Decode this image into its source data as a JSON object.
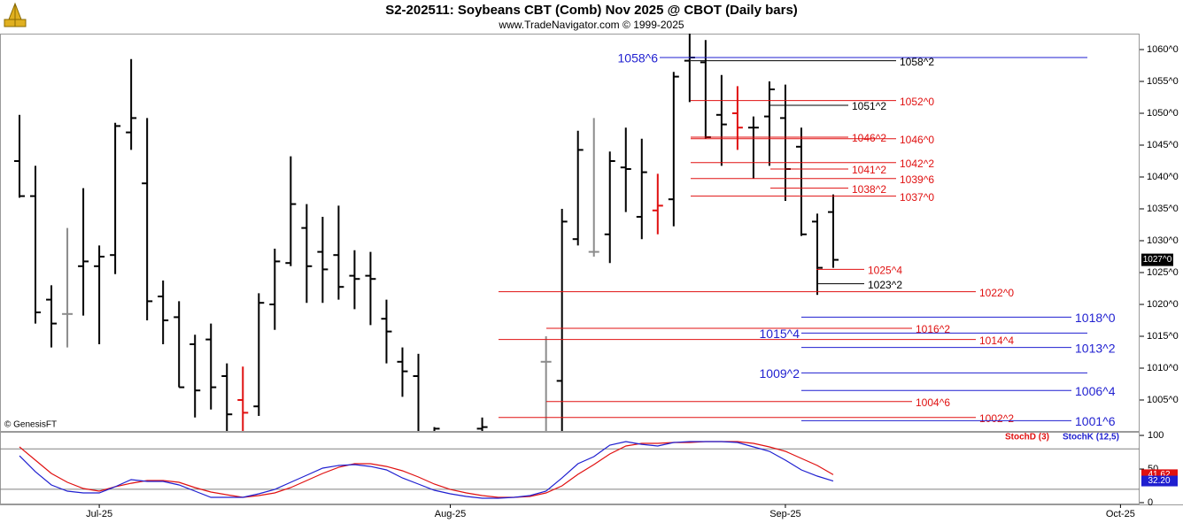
{
  "chart_data": [
    {
      "type": "ohlc",
      "title": "S2-202511:  Soybeans CBT (Comb) Nov 2025 @ CBOT  (Daily bars)",
      "subtitle": "www.TradeNavigator.com © 1999-2025",
      "watermark": "© GenesisFT",
      "color": "#000000",
      "categories": [
        null,
        null,
        null,
        null,
        null,
        "Jul-25",
        null,
        null,
        null,
        null,
        null,
        null,
        null,
        null,
        null,
        null,
        null,
        null,
        null,
        null,
        null,
        null,
        null,
        null,
        null,
        null,
        null,
        "Aug-25",
        null,
        null,
        null,
        null,
        null,
        null,
        null,
        null,
        null,
        null,
        null,
        null,
        null,
        null,
        null,
        null,
        null,
        null,
        null,
        null,
        "Sep-25",
        null,
        null,
        null,
        null,
        null,
        null,
        null,
        null,
        null,
        null,
        null,
        null,
        null,
        null,
        null,
        null,
        null,
        null,
        null,
        null,
        "Oct-25"
      ],
      "bars": [
        {
          "open": 1042.5,
          "high": 1049.75,
          "low": 1036.75,
          "close": 1037
        },
        {
          "open": 1037,
          "high": 1041.75,
          "low": 1017,
          "close": 1018.75
        },
        {
          "open": 1020.75,
          "high": 1023,
          "low": 1013.25,
          "close": 1017
        },
        {
          "open": 1018.5,
          "high": 1032,
          "low": 1013.25,
          "close": 1018.5,
          "color": "#8c8c8c"
        },
        {
          "open": 1026,
          "high": 1038.25,
          "low": 1018.25,
          "close": 1026.75
        },
        {
          "open": 1026,
          "high": 1029.25,
          "low": 1013.75,
          "close": 1027.5
        },
        {
          "open": 1027.75,
          "high": 1048.5,
          "low": 1024.75,
          "close": 1048
        },
        {
          "open": 1047,
          "high": 1058.5,
          "low": 1044.25,
          "close": 1049.25
        },
        {
          "open": 1039,
          "high": 1049.25,
          "low": 1017.5,
          "close": 1020.5
        },
        {
          "open": 1021.25,
          "high": 1023.75,
          "low": 1013.75,
          "close": 1017.5
        },
        {
          "open": 1018,
          "high": 1020.5,
          "low": 1007,
          "close": 1007
        },
        {
          "open": 1013.75,
          "high": 1015.25,
          "low": 1002.25,
          "close": 1006.5
        },
        {
          "open": 1014.5,
          "high": 1017,
          "low": 1003.5,
          "close": 1007
        },
        {
          "open": 1008.75,
          "high": 1010.75,
          "low": 999.5,
          "close": 1002.75
        },
        {
          "open": 1005,
          "high": 1010.25,
          "low": 999.5,
          "close": 1003,
          "color": "#e01010"
        },
        {
          "open": 1004,
          "high": 1021.75,
          "low": 1002.5,
          "close": 1020.25
        },
        {
          "open": 1020,
          "high": 1028.75,
          "low": 1016,
          "close": 1026.75
        },
        {
          "open": 1026.5,
          "high": 1043.25,
          "low": 1026,
          "close": 1035.75
        },
        {
          "open": 1032,
          "high": 1035.75,
          "low": 1020.25,
          "close": 1026
        },
        {
          "open": 1028.25,
          "high": 1033.75,
          "low": 1020.25,
          "close": 1025.5
        },
        {
          "open": 1027.75,
          "high": 1035.5,
          "low": 1020.75,
          "close": 1022.75
        },
        {
          "open": 1024.5,
          "high": 1028.5,
          "low": 1019.25,
          "close": 1024
        },
        {
          "open": 1024.5,
          "high": 1028.25,
          "low": 1016.75,
          "close": 1024
        },
        {
          "open": 1017.75,
          "high": 1020.75,
          "low": 1010.75,
          "close": 1015.75
        },
        {
          "open": 1011,
          "high": 1013.25,
          "low": 1005.5,
          "close": 1009.5
        },
        {
          "open": 1008.75,
          "high": 1012.25,
          "low": 999,
          "close": 999.5
        },
        {
          "open": 999.5,
          "high": 1000.75,
          "low": 999,
          "close": 1000.5
        },
        null,
        null,
        {
          "open": 1000.5,
          "high": 1002.25,
          "low": 999,
          "close": 1000.75
        },
        null,
        null,
        null,
        {
          "open": 1011,
          "high": 1015,
          "low": 999.5,
          "close": 1011,
          "color": "#8c8c8c"
        },
        {
          "open": 1008,
          "high": 1035,
          "low": 999.5,
          "close": 1033
        },
        {
          "open": 1030.25,
          "high": 1047.25,
          "low": 1029.25,
          "close": 1044.25
        },
        {
          "open": 1028.25,
          "high": 1049.25,
          "low": 1027.5,
          "close": 1028.25,
          "color": "#8c8c8c"
        },
        {
          "open": 1031,
          "high": 1044,
          "low": 1026.5,
          "close": 1042.5
        },
        {
          "open": 1041.5,
          "high": 1047.75,
          "low": 1034.5,
          "close": 1041.25
        },
        {
          "open": 1033.75,
          "high": 1046,
          "low": 1030.25,
          "close": 1040.75
        },
        {
          "open": 1034.75,
          "high": 1040.5,
          "low": 1031,
          "close": 1035.5,
          "color": "#e01010"
        },
        {
          "open": 1036.5,
          "high": 1056.5,
          "low": 1032.25,
          "close": 1055.75
        },
        {
          "open": 1058.25,
          "high": 1063,
          "low": 1051.75,
          "close": 1058.75
        },
        {
          "open": 1058,
          "high": 1061.5,
          "low": 1046,
          "close": 1046.25
        },
        {
          "open": 1049.75,
          "high": 1056,
          "low": 1041.75,
          "close": 1048.25
        },
        {
          "open": 1050,
          "high": 1054.25,
          "low": 1044.25,
          "close": 1047.75,
          "color": "#e01010"
        },
        {
          "open": 1047.75,
          "high": 1049.5,
          "low": 1039.75,
          "close": 1047.75
        },
        {
          "open": 1049.5,
          "high": 1055,
          "low": 1041.75,
          "close": 1053.75
        },
        {
          "open": 1049.25,
          "high": 1054.5,
          "low": 1036.25,
          "close": 1041.25
        },
        {
          "open": 1044.75,
          "high": 1047.75,
          "low": 1030.75,
          "close": 1031
        },
        {
          "open": 1033,
          "high": 1034.25,
          "low": 1021.5,
          "close": 1025.75
        },
        {
          "open": 1034.5,
          "high": 1037.25,
          "low": 1025.75,
          "close": 1027
        },
        null,
        null,
        null,
        null,
        null,
        null,
        null,
        null,
        null,
        null,
        null,
        null,
        null,
        null,
        null,
        null,
        null,
        null
      ],
      "ylim": [
        1000.14,
        1062.5
      ],
      "yticks": [
        {
          "value": 1005,
          "label": "1005^0"
        },
        {
          "value": 1010,
          "label": "1010^0"
        },
        {
          "value": 1015,
          "label": "1015^0"
        },
        {
          "value": 1020,
          "label": "1020^0"
        },
        {
          "value": 1025,
          "label": "1025^0"
        },
        {
          "value": 1030,
          "label": "1030^0"
        },
        {
          "value": 1035,
          "label": "1035^0"
        },
        {
          "value": 1040,
          "label": "1040^0"
        },
        {
          "value": 1045,
          "label": "1045^0"
        },
        {
          "value": 1050,
          "label": "1050^0"
        },
        {
          "value": 1055,
          "label": "1055^0"
        },
        {
          "value": 1060,
          "label": "1060^0"
        }
      ],
      "last_price": {
        "value": 1027,
        "label": "1027^0"
      },
      "levels": [
        {
          "value": 1058.75,
          "label": "1058^6",
          "color": "#1f1fd0"
        },
        {
          "value": 1058.25,
          "label": "1058^2",
          "color": "#000000"
        },
        {
          "value": 1052,
          "label": "1052^0",
          "color": "#e01010"
        },
        {
          "value": 1051.25,
          "label": "1051^2",
          "color": "#000000"
        },
        {
          "value": 1046.25,
          "label": "1046^2",
          "color": "#e01010"
        },
        {
          "value": 1046,
          "label": "1046^0",
          "color": "#e01010"
        },
        {
          "value": 1042.25,
          "label": "1042^2",
          "color": "#e01010"
        },
        {
          "value": 1041.25,
          "label": "1041^2",
          "color": "#e01010"
        },
        {
          "value": 1039.75,
          "label": "1039^6",
          "color": "#e01010"
        },
        {
          "value": 1038.25,
          "label": "1038^2",
          "color": "#e01010"
        },
        {
          "value": 1037,
          "label": "1037^0",
          "color": "#e01010"
        },
        {
          "value": 1025.5,
          "label": "1025^4",
          "color": "#e01010"
        },
        {
          "value": 1023.25,
          "label": "1023^2",
          "color": "#000000"
        },
        {
          "value": 1022,
          "label": "1022^0",
          "color": "#e01010"
        },
        {
          "value": 1018,
          "label": "1018^0",
          "color": "#1f1fd0"
        },
        {
          "value": 1016.25,
          "label": "1016^2",
          "color": "#e01010"
        },
        {
          "value": 1015.5,
          "label": "1015^4",
          "color": "#1f1fd0"
        },
        {
          "value": 1014.5,
          "label": "1014^4",
          "color": "#e01010"
        },
        {
          "value": 1013.25,
          "label": "1013^2",
          "color": "#1f1fd0"
        },
        {
          "value": 1009.25,
          "label": "1009^2",
          "color": "#1f1fd0"
        },
        {
          "value": 1006.5,
          "label": "1006^4",
          "color": "#1f1fd0"
        },
        {
          "value": 1004.75,
          "label": "1004^6",
          "color": "#e01010"
        },
        {
          "value": 1002.25,
          "label": "1002^2",
          "color": "#e01010"
        },
        {
          "value": 1001.75,
          "label": "1001^6",
          "color": "#1f1fd0"
        }
      ]
    },
    {
      "type": "line",
      "ylim": [
        -2.6,
        105.3
      ],
      "yticks": [
        0,
        50,
        100
      ],
      "reference_lines": [
        80,
        20
      ],
      "series": [
        {
          "name": "StochD (3)",
          "color": "#e01010",
          "values": [
            82.9,
            63.2,
            43.4,
            30.3,
            21.1,
            17.1,
            23.7,
            28.9,
            32.9,
            32.9,
            30.3,
            22.4,
            15.8,
            11.8,
            7.9,
            10.5,
            14.5,
            22.4,
            32.9,
            43.4,
            52.6,
            57.9,
            57.9,
            53.9,
            47.4,
            38.2,
            27.6,
            19.7,
            14.5,
            10.5,
            7.9,
            7.9,
            9.2,
            14.5,
            25,
            42.1,
            56.6,
            72.4,
            84.2,
            88.2,
            88.2,
            89.5,
            89.5,
            90.8,
            90.8,
            90.8,
            88.2,
            82.9,
            76.3,
            65.8,
            55.3,
            41.62,
            null,
            null,
            null,
            null,
            null,
            null,
            null,
            null,
            null,
            null,
            null,
            null,
            null,
            null,
            null,
            null,
            null,
            null
          ],
          "value_labels": [
            null,
            null,
            null,
            null,
            null,
            null,
            null,
            null,
            null,
            null,
            null,
            null,
            null,
            null,
            null,
            null,
            null,
            null,
            null,
            null,
            null,
            null,
            null,
            null,
            null,
            null,
            null,
            null,
            null,
            null,
            null,
            null,
            null,
            null,
            null,
            null,
            null,
            null,
            null,
            null,
            null,
            null,
            null,
            null,
            null,
            null,
            null,
            null,
            null,
            null,
            null,
            "41.62",
            null,
            null,
            null,
            null,
            null,
            null,
            null,
            null,
            null,
            null,
            null,
            null,
            null,
            null,
            null,
            null,
            null,
            null
          ]
        },
        {
          "name": "StochK (12,5)",
          "color": "#1f1fd0",
          "values": [
            69.7,
            46,
            26.3,
            17.1,
            14.5,
            14.5,
            23.7,
            34.2,
            31.6,
            31.6,
            26.3,
            17.1,
            7.9,
            7.9,
            7.9,
            13.2,
            19.7,
            30.3,
            40.8,
            51.3,
            55.3,
            56.6,
            53.9,
            48.7,
            36.8,
            27.6,
            18.4,
            13.2,
            9.2,
            6.6,
            6.6,
            7.9,
            10.5,
            17.1,
            36.8,
            57.9,
            68.4,
            85.5,
            90.8,
            86.8,
            84.2,
            89.5,
            90.8,
            90.8,
            90.8,
            89.5,
            82.9,
            76.3,
            63.2,
            48.7,
            39.5,
            32.2,
            null,
            null,
            null,
            null,
            null,
            null,
            null,
            null,
            null,
            null,
            null,
            null,
            null,
            null,
            null,
            null,
            null,
            null
          ],
          "value_labels": [
            null,
            null,
            null,
            null,
            null,
            null,
            null,
            null,
            null,
            null,
            null,
            null,
            null,
            null,
            null,
            null,
            null,
            null,
            null,
            null,
            null,
            null,
            null,
            null,
            null,
            null,
            null,
            null,
            null,
            null,
            null,
            null,
            null,
            null,
            null,
            null,
            null,
            null,
            null,
            null,
            null,
            null,
            null,
            null,
            null,
            null,
            null,
            null,
            null,
            null,
            null,
            "32.20",
            null,
            null,
            null,
            null,
            null,
            null,
            null,
            null,
            null,
            null,
            null,
            null,
            null,
            null,
            null,
            null,
            null,
            null
          ]
        }
      ]
    }
  ]
}
